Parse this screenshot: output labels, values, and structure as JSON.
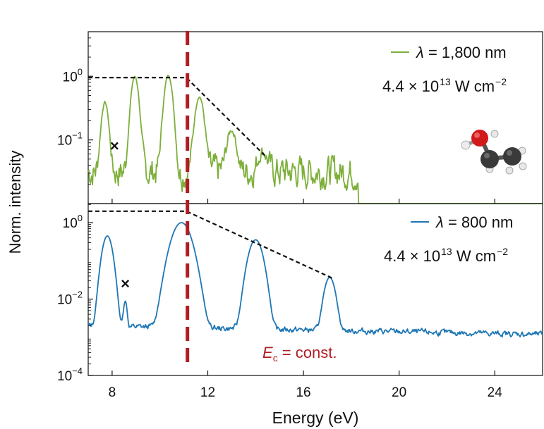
{
  "chart_data": [
    {
      "type": "line",
      "panel": "top",
      "xlim": [
        7,
        26
      ],
      "ylim_log10": [
        -2.0,
        0.7
      ],
      "ytick_base": "10",
      "ytick_exponents": [
        "0",
        "−1"
      ],
      "ytick_exponent_values": [
        0,
        -1
      ],
      "legend": {
        "symbol": "λ",
        "rest": " = 1,800 nm",
        "color": "#7daf3a",
        "position": "top-right"
      },
      "intensity": {
        "base": "4.4 × 10",
        "exp": "13",
        "unit": "W cm",
        "unit_exp": "−2"
      },
      "marker": {
        "symbol": "×",
        "x": 8.1,
        "log10y": -1.1
      },
      "cutoff_line": {
        "x": [
          7.0,
          11.1,
          14.4
        ],
        "log10y": [
          -0.02,
          -0.02,
          -1.25
        ]
      },
      "peaks": [
        {
          "x": 7.7,
          "log10y": -0.45,
          "w": 0.12
        },
        {
          "x": 8.95,
          "log10y": -0.02,
          "w": 0.13
        },
        {
          "x": 10.35,
          "log10y": 0.0,
          "w": 0.14
        },
        {
          "x": 11.65,
          "log10y": -0.35,
          "w": 0.15
        },
        {
          "x": 13.0,
          "log10y": -0.95,
          "w": 0.16
        },
        {
          "x": 14.3,
          "log10y": -1.45,
          "w": 0.17
        }
      ],
      "baseline": {
        "start": -1.5,
        "slope": 0.0,
        "noise": 0.2,
        "end_x": 18.3,
        "drop": -1.7
      }
    },
    {
      "type": "line",
      "panel": "bottom",
      "xlim": [
        7,
        26
      ],
      "ylim_log10": [
        -4.0,
        0.5
      ],
      "xticks": [
        "8",
        "12",
        "16",
        "20",
        "24"
      ],
      "xtick_values": [
        8,
        12,
        16,
        20,
        24
      ],
      "xlabel": "Energy (eV)",
      "ytick_base": "10",
      "ytick_exponents": [
        "0",
        "−2",
        "−4"
      ],
      "ytick_exponent_values": [
        0,
        -2,
        -4
      ],
      "legend": {
        "symbol": "λ",
        "rest": " = 800 nm",
        "color": "#1f77b4",
        "position": "top-right"
      },
      "intensity": {
        "base": "4.4 × 10",
        "exp": "13",
        "unit": "W cm",
        "unit_exp": "−2"
      },
      "marker": {
        "symbol": "×",
        "x": 8.55,
        "log10y": -1.6
      },
      "cutoff_line": {
        "x": [
          7.0,
          11.1,
          17.2
        ],
        "log10y": [
          0.3,
          0.3,
          -1.45
        ]
      },
      "peaks": [
        {
          "x": 7.8,
          "log10y": -0.35,
          "w": 0.16
        },
        {
          "x": 8.55,
          "log10y": -2.15,
          "w": 0.06
        },
        {
          "x": 10.9,
          "log10y": 0.0,
          "w": 0.3
        },
        {
          "x": 14.0,
          "log10y": -0.45,
          "w": 0.22
        },
        {
          "x": 17.1,
          "log10y": -1.45,
          "w": 0.17
        }
      ],
      "baseline": {
        "start": -2.7,
        "slope": -0.012,
        "noise": 0.06,
        "end_x": 26,
        "drop": 0
      }
    }
  ],
  "ylabel": "Norm. intensity",
  "cutoff_energy": 11.15,
  "cutoff_label": {
    "symbol": "E",
    "sub": "c",
    "rest": " = const."
  },
  "colors": {
    "top": "#7daf3a",
    "bottom": "#1f77b4",
    "cutoff": "#b01e24",
    "axes": "#111111"
  },
  "molecule_icon": "ethanol-molecule"
}
